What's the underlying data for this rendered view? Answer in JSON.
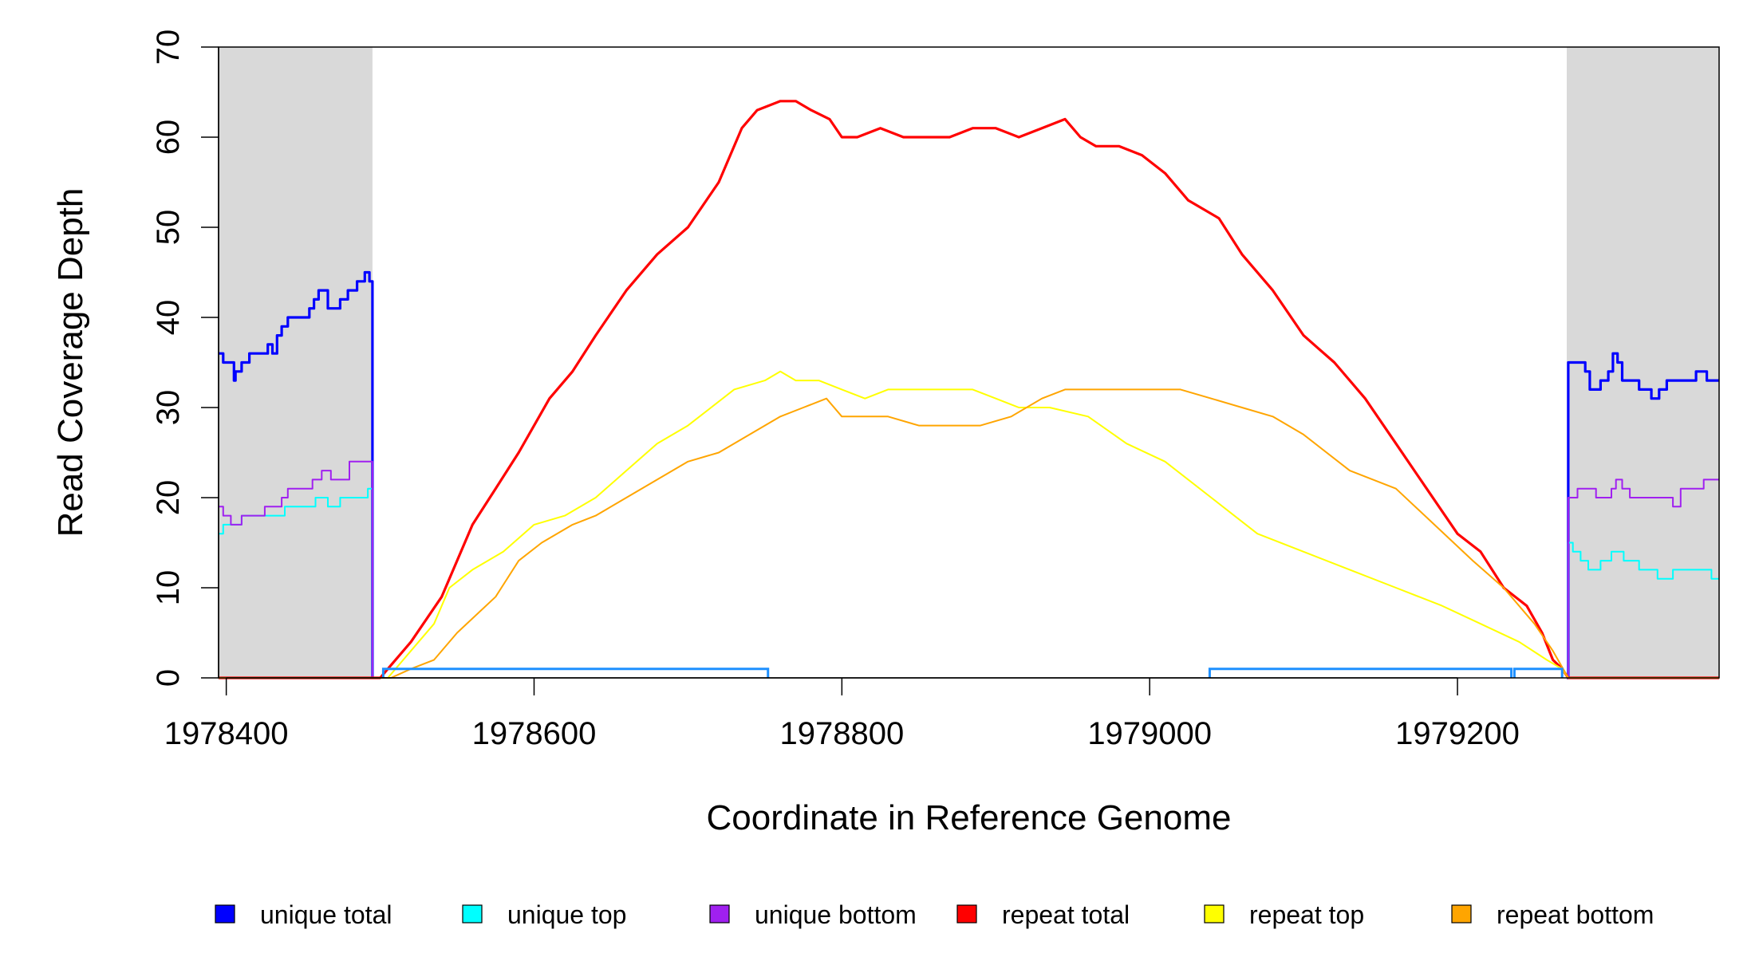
{
  "chart_data": {
    "type": "line",
    "xlabel": "Coordinate in Reference Genome",
    "ylabel": "Read Coverage Depth",
    "xlim": [
      1978395,
      1979370
    ],
    "ylim": [
      0,
      70
    ],
    "x_ticks": [
      1978400,
      1978600,
      1978800,
      1979000,
      1979200
    ],
    "y_ticks": [
      0,
      10,
      20,
      30,
      40,
      50,
      60,
      70
    ],
    "grid": false,
    "legend_position": "bottom",
    "shaded_regions": [
      {
        "x": [
          1978395,
          1978495
        ],
        "color": "#d9d9d9"
      },
      {
        "x": [
          1979271,
          1979370
        ],
        "color": "#d9d9d9"
      }
    ],
    "feature_segments": [
      {
        "x": [
          1978502,
          1978752
        ],
        "y": 1,
        "color": "#1e90ff"
      },
      {
        "x": [
          1979039,
          1979235
        ],
        "y": 1,
        "color": "#1e90ff"
      },
      {
        "x": [
          1979237,
          1979268
        ],
        "y": 1,
        "color": "#1e90ff"
      }
    ],
    "series": [
      {
        "name": "unique total",
        "color": "#0000ff",
        "step": true,
        "segments": [
          {
            "x": [
              1978395,
              1978398,
              1978400,
              1978405,
              1978406,
              1978410,
              1978415,
              1978427,
              1978430,
              1978433,
              1978436,
              1978440,
              1978443,
              1978454,
              1978457,
              1978460,
              1978466,
              1978474,
              1978479,
              1978485,
              1978490,
              1978493,
              1978495
            ],
            "y": [
              36,
              35,
              35,
              33,
              34,
              35,
              36,
              37,
              36,
              38,
              39,
              40,
              40,
              41,
              42,
              43,
              41,
              42,
              43,
              44,
              45,
              44,
              0
            ]
          },
          {
            "x": [
              1979271,
              1979272,
              1979283,
              1979286,
              1979293,
              1979298,
              1979301,
              1979304,
              1979307,
              1979310,
              1979318,
              1979326,
              1979331,
              1979336,
              1979355,
              1979362,
              1979370
            ],
            "y": [
              0,
              35,
              34,
              32,
              33,
              34,
              36,
              35,
              33,
              33,
              32,
              31,
              32,
              33,
              34,
              33,
              33
            ]
          }
        ]
      },
      {
        "name": "unique top",
        "color": "#00ffff",
        "step": true,
        "segments": [
          {
            "x": [
              1978395,
              1978398,
              1978400,
              1978410,
              1978420,
              1978438,
              1978458,
              1978466,
              1978474,
              1978485,
              1978492,
              1978495
            ],
            "y": [
              16,
              17,
              17,
              18,
              18,
              19,
              20,
              19,
              20,
              20,
              21,
              0
            ]
          },
          {
            "x": [
              1979271,
              1979272,
              1979275,
              1979280,
              1979285,
              1979293,
              1979300,
              1979308,
              1979318,
              1979330,
              1979340,
              1979365,
              1979370
            ],
            "y": [
              0,
              15,
              14,
              13,
              12,
              13,
              14,
              13,
              12,
              11,
              12,
              11,
              11
            ]
          }
        ]
      },
      {
        "name": "unique bottom",
        "color": "#a020f0",
        "step": true,
        "segments": [
          {
            "x": [
              1978395,
              1978398,
              1978400,
              1978403,
              1978410,
              1978425,
              1978436,
              1978440,
              1978446,
              1978456,
              1978462,
              1978468,
              1978480,
              1978495
            ],
            "y": [
              19,
              18,
              18,
              17,
              18,
              19,
              20,
              21,
              21,
              22,
              23,
              22,
              24,
              0
            ]
          },
          {
            "x": [
              1979271,
              1979272,
              1979278,
              1979290,
              1979300,
              1979303,
              1979307,
              1979312,
              1979318,
              1979335,
              1979340,
              1979345,
              1979360,
              1979370
            ],
            "y": [
              0,
              20,
              21,
              20,
              21,
              22,
              21,
              20,
              20,
              20,
              19,
              21,
              22,
              22
            ]
          }
        ]
      },
      {
        "name": "repeat total",
        "color": "#ff0000",
        "step": false,
        "x": [
          1978395,
          1978500,
          1978505,
          1978520,
          1978540,
          1978560,
          1978575,
          1978590,
          1978610,
          1978625,
          1978640,
          1978660,
          1978680,
          1978700,
          1978720,
          1978735,
          1978745,
          1978760,
          1978770,
          1978780,
          1978792,
          1978800,
          1978810,
          1978825,
          1978840,
          1978855,
          1978870,
          1978885,
          1978900,
          1978915,
          1978930,
          1978945,
          1978955,
          1978965,
          1978980,
          1978995,
          1979010,
          1979025,
          1979045,
          1979060,
          1979080,
          1979100,
          1979120,
          1979140,
          1979160,
          1979180,
          1979200,
          1979215,
          1979230,
          1979245,
          1979255,
          1979262,
          1979268,
          1979272,
          1979370
        ],
        "y": [
          0,
          0,
          1,
          4,
          9,
          17,
          21,
          25,
          31,
          34,
          38,
          43,
          47,
          50,
          55,
          61,
          63,
          64,
          64,
          63,
          62,
          60,
          60,
          61,
          60,
          60,
          60,
          61,
          61,
          60,
          61,
          62,
          60,
          59,
          59,
          58,
          56,
          53,
          51,
          47,
          43,
          38,
          35,
          31,
          26,
          21,
          16,
          14,
          10,
          8,
          5,
          2,
          1,
          0,
          0
        ]
      },
      {
        "name": "repeat top",
        "color": "#ffff00",
        "step": false,
        "x": [
          1978395,
          1978505,
          1978515,
          1978535,
          1978545,
          1978560,
          1978580,
          1978600,
          1978620,
          1978640,
          1978660,
          1978680,
          1978700,
          1978715,
          1978730,
          1978750,
          1978760,
          1978770,
          1978785,
          1978800,
          1978815,
          1978830,
          1978850,
          1978870,
          1978885,
          1978900,
          1978915,
          1978935,
          1978960,
          1978985,
          1979010,
          1979040,
          1979070,
          1979100,
          1979130,
          1979160,
          1979190,
          1979215,
          1979240,
          1979258,
          1979268,
          1979272,
          1979370
        ],
        "y": [
          0,
          0,
          2,
          6,
          10,
          12,
          14,
          17,
          18,
          20,
          23,
          26,
          28,
          30,
          32,
          33,
          34,
          33,
          33,
          32,
          31,
          32,
          32,
          32,
          32,
          31,
          30,
          30,
          29,
          26,
          24,
          20,
          16,
          14,
          12,
          10,
          8,
          6,
          4,
          2,
          1,
          0,
          0
        ]
      },
      {
        "name": "repeat bottom",
        "color": "#ffa500",
        "step": false,
        "x": [
          1978395,
          1978507,
          1978520,
          1978535,
          1978550,
          1978575,
          1978590,
          1978605,
          1978625,
          1978640,
          1978660,
          1978680,
          1978700,
          1978720,
          1978740,
          1978760,
          1978775,
          1978790,
          1978800,
          1978815,
          1978830,
          1978850,
          1978870,
          1978890,
          1978910,
          1978930,
          1978945,
          1978960,
          1978980,
          1979000,
          1979020,
          1979040,
          1979060,
          1979080,
          1979100,
          1979130,
          1979160,
          1979185,
          1979210,
          1979230,
          1979250,
          1979262,
          1979272,
          1979370
        ],
        "y": [
          0,
          0,
          1,
          2,
          5,
          9,
          13,
          15,
          17,
          18,
          20,
          22,
          24,
          25,
          27,
          29,
          30,
          31,
          29,
          29,
          29,
          28,
          28,
          28,
          29,
          31,
          32,
          32,
          32,
          32,
          32,
          31,
          30,
          29,
          27,
          23,
          21,
          17,
          13,
          10,
          6,
          3,
          0,
          0
        ]
      }
    ]
  }
}
